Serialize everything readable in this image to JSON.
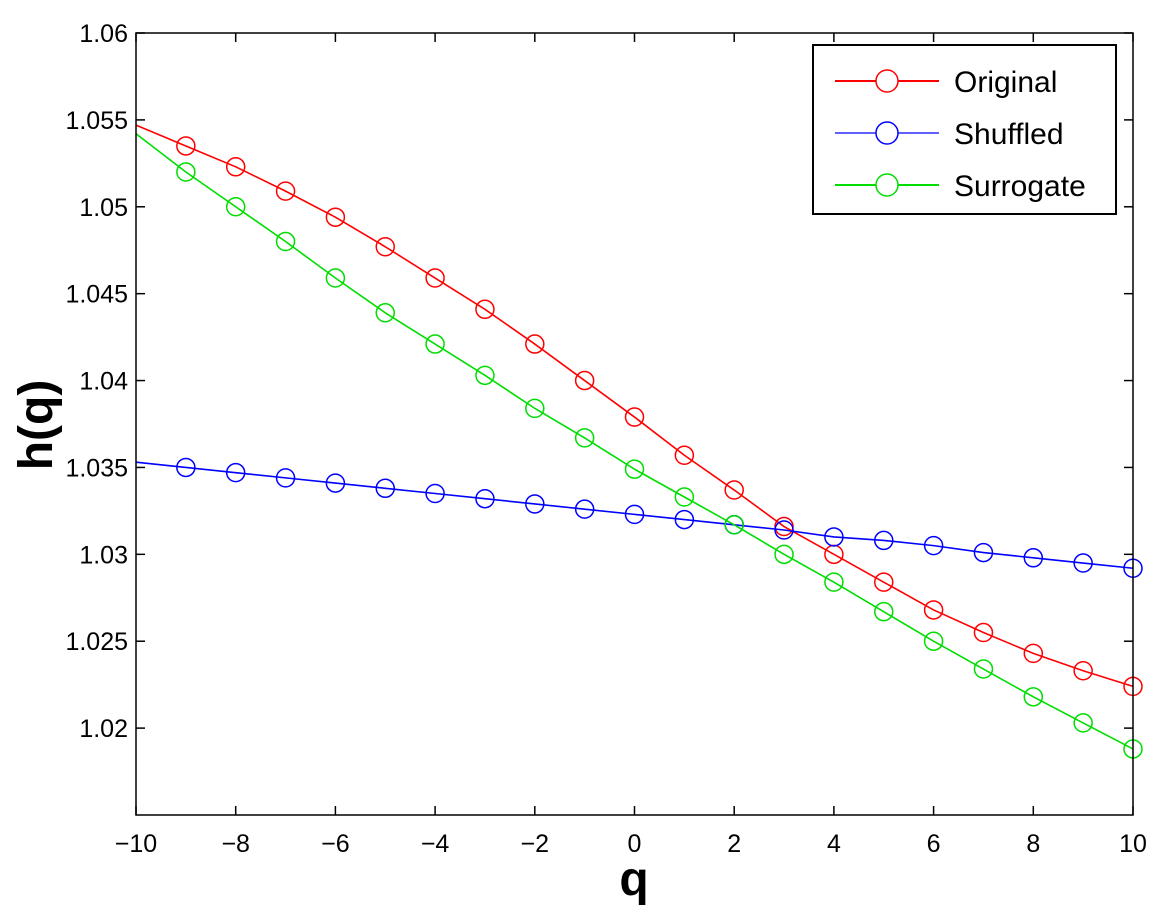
{
  "chart_data": {
    "type": "line",
    "title": "",
    "xlabel": "q",
    "ylabel": "h(q)",
    "xlim": [
      -10,
      10
    ],
    "ylim": [
      1.015,
      1.06
    ],
    "x_ticks": [
      "−10",
      "−8",
      "−6",
      "−4",
      "−2",
      "0",
      "2",
      "4",
      "6",
      "8",
      "10"
    ],
    "y_ticks": [
      "1.02",
      "1.025",
      "1.03",
      "1.035",
      "1.04",
      "1.045",
      "1.05",
      "1.055",
      "1.06"
    ],
    "grid": false,
    "legend_position": "top-right",
    "marker": "open-circle",
    "series": [
      {
        "name": "Original",
        "color": "#ff0000",
        "x_line_start": -10,
        "y_line_start": 1.0547,
        "x": [
          -9,
          -8,
          -7,
          -6,
          -5,
          -4,
          -3,
          -2,
          -1,
          0,
          1,
          2,
          3,
          4,
          5,
          6,
          7,
          8,
          9,
          10
        ],
        "values": [
          1.0535,
          1.0523,
          1.0509,
          1.0494,
          1.0477,
          1.0459,
          1.0441,
          1.0421,
          1.04,
          1.0379,
          1.0357,
          1.0337,
          1.0316,
          1.03,
          1.0284,
          1.0268,
          1.0255,
          1.0243,
          1.0233,
          1.0224
        ]
      },
      {
        "name": "Shuffled",
        "color": "#0000ff",
        "x_line_start": -10,
        "y_line_start": 1.0353,
        "x": [
          -9,
          -8,
          -7,
          -6,
          -5,
          -4,
          -3,
          -2,
          -1,
          0,
          1,
          2,
          3,
          4,
          5,
          6,
          7,
          8,
          9,
          10
        ],
        "values": [
          1.035,
          1.0347,
          1.0344,
          1.0341,
          1.0338,
          1.0335,
          1.0332,
          1.0329,
          1.0326,
          1.0323,
          1.032,
          1.0317,
          1.0314,
          1.031,
          1.0308,
          1.0305,
          1.0301,
          1.0298,
          1.0295,
          1.0292
        ]
      },
      {
        "name": "Surrogate",
        "color": "#00dd00",
        "x_line_start": -10,
        "y_line_start": 1.0542,
        "x": [
          -9,
          -8,
          -7,
          -6,
          -5,
          -4,
          -3,
          -2,
          -1,
          0,
          1,
          2,
          3,
          4,
          5,
          6,
          7,
          8,
          9,
          10
        ],
        "values": [
          1.052,
          1.05,
          1.048,
          1.0459,
          1.0439,
          1.0421,
          1.0403,
          1.0384,
          1.0367,
          1.0349,
          1.0333,
          1.0317,
          1.03,
          1.0284,
          1.0267,
          1.025,
          1.0234,
          1.0218,
          1.0203,
          1.0188
        ]
      }
    ]
  }
}
